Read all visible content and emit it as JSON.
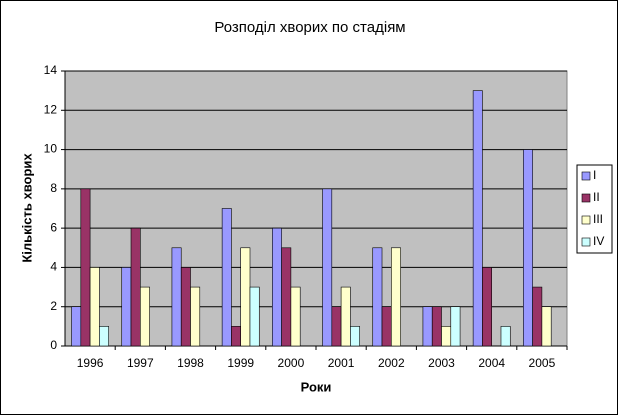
{
  "chart_data": {
    "type": "bar",
    "title": "Розподіл хворих по стадіям",
    "x_label": "Роки",
    "y_label": "Кількість хворих",
    "categories": [
      "1996",
      "1997",
      "1998",
      "1999",
      "2000",
      "2001",
      "2002",
      "2003",
      "2004",
      "2005"
    ],
    "series": [
      {
        "name": "I",
        "color": "#9999ff",
        "values": [
          2,
          4,
          5,
          7,
          6,
          8,
          5,
          2,
          13,
          10
        ]
      },
      {
        "name": "II",
        "color": "#993366",
        "values": [
          8,
          6,
          4,
          1,
          5,
          2,
          2,
          2,
          4,
          3
        ]
      },
      {
        "name": "III",
        "color": "#ffffcc",
        "values": [
          4,
          3,
          3,
          5,
          3,
          3,
          5,
          1,
          0,
          2
        ]
      },
      {
        "name": "IV",
        "color": "#ccffff",
        "values": [
          1,
          0,
          0,
          3,
          0,
          1,
          0,
          2,
          1,
          0
        ]
      }
    ],
    "ylim": [
      0,
      14
    ],
    "yticks": [
      0,
      2,
      4,
      6,
      8,
      10,
      12,
      14
    ],
    "grid": true,
    "legend": "right"
  }
}
